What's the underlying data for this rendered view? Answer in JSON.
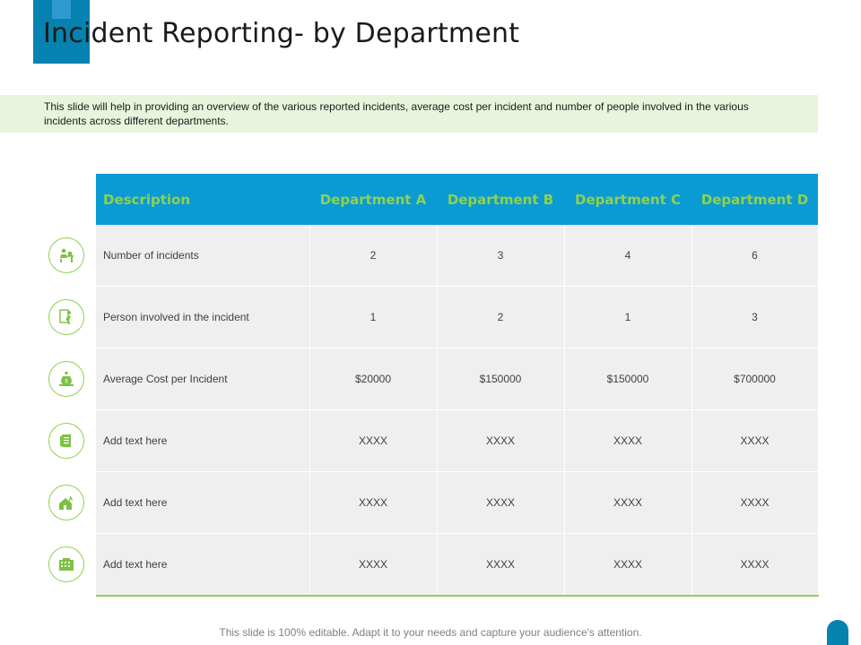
{
  "slide": {
    "title": "Incident Reporting- by Department",
    "intro": "This slide will help in providing an overview of the various reported incidents, average cost per incident and number of people involved in the various incidents across different departments.",
    "footer": "This slide is 100% editable. Adapt it to your needs and capture your audience's attention."
  },
  "colors": {
    "header_bg": "#0a9bd3",
    "header_text": "#8fd14f",
    "accent": "#0582b0",
    "band": "#e8f5dc",
    "cell_bg": "#efefef"
  },
  "table": {
    "headers": [
      "Description",
      "Department A",
      "Department B",
      "Department C",
      "Department D"
    ],
    "rows": [
      {
        "icon": "worker-desk-icon",
        "cells": [
          "Number of incidents",
          "2",
          "3",
          "4",
          "6"
        ]
      },
      {
        "icon": "fall-hazard-icon",
        "cells": [
          "Person involved in the incident",
          "1",
          "2",
          "1",
          "3"
        ]
      },
      {
        "icon": "money-bag-icon",
        "cells": [
          "Average Cost per Incident",
          "$20000",
          "$150000",
          "$150000",
          "$700000"
        ]
      },
      {
        "icon": "documents-icon",
        "cells": [
          "Add text here",
          "XXXX",
          "XXXX",
          "XXXX",
          "XXXX"
        ]
      },
      {
        "icon": "house-fire-icon",
        "cells": [
          "Add text here",
          "XXXX",
          "XXXX",
          "XXXX",
          "XXXX"
        ]
      },
      {
        "icon": "building-icon",
        "cells": [
          "Add text here",
          "XXXX",
          "XXXX",
          "XXXX",
          "XXXX"
        ]
      }
    ]
  }
}
